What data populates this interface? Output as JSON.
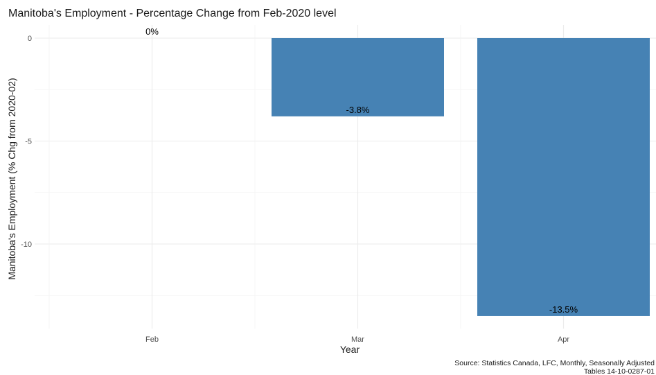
{
  "chart_data": {
    "type": "bar",
    "title": "Manitoba's Employment - Percentage Change from Feb-2020 level",
    "xlabel": "Year",
    "ylabel": "Manitoba's Employment (% Chg from 2020-02)",
    "categories": [
      "Feb",
      "Mar",
      "Apr"
    ],
    "values": [
      0,
      -3.8,
      -13.5
    ],
    "data_labels": [
      "0%",
      "-3.8%",
      "-13.5%"
    ],
    "ylim": [
      -14.2,
      0.5
    ],
    "yticks": [
      0,
      -5,
      -10
    ],
    "ytick_labels": [
      "0",
      "-5",
      "-10"
    ],
    "grid": true,
    "bar_color": "#4682b4",
    "caption_lines": [
      "Source: Statistics Canada, LFC, Monthly, Seasonally Adjusted",
      "Tables 14-10-0287-01"
    ]
  }
}
